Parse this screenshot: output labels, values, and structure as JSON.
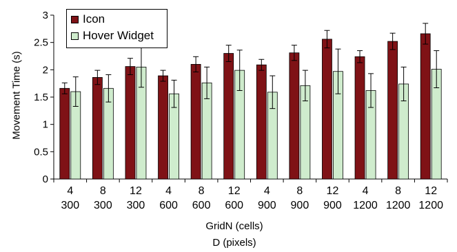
{
  "chart_data": {
    "type": "bar",
    "title": "",
    "ylabel": "Movement Time (s)",
    "xlabel_lines": [
      "GridN (cells)",
      "D (pixels)"
    ],
    "ylim": [
      0,
      3
    ],
    "yticks": [
      "0",
      "0.5",
      "1",
      "1.5",
      "2",
      "2.5",
      "3"
    ],
    "categories": [
      {
        "grid": "4",
        "d": "300"
      },
      {
        "grid": "8",
        "d": "300"
      },
      {
        "grid": "12",
        "d": "300"
      },
      {
        "grid": "4",
        "d": "600"
      },
      {
        "grid": "8",
        "d": "600"
      },
      {
        "grid": "12",
        "d": "600"
      },
      {
        "grid": "4",
        "d": "900"
      },
      {
        "grid": "8",
        "d": "900"
      },
      {
        "grid": "12",
        "d": "900"
      },
      {
        "grid": "4",
        "d": "1200"
      },
      {
        "grid": "8",
        "d": "1200"
      },
      {
        "grid": "12",
        "d": "1200"
      }
    ],
    "series": [
      {
        "name": "Icon",
        "color": "#7f1216",
        "values": [
          1.66,
          1.86,
          2.06,
          1.89,
          2.1,
          2.3,
          2.09,
          2.31,
          2.56,
          2.24,
          2.52,
          2.66
        ],
        "errors": [
          0.1,
          0.13,
          0.15,
          0.1,
          0.14,
          0.15,
          0.1,
          0.14,
          0.16,
          0.11,
          0.15,
          0.19
        ]
      },
      {
        "name": "Hover Widget",
        "color": "#cfeccd",
        "values": [
          1.6,
          1.66,
          2.05,
          1.56,
          1.76,
          1.99,
          1.59,
          1.71,
          1.97,
          1.62,
          1.74,
          2.01
        ],
        "errors": [
          0.27,
          0.25,
          0.37,
          0.25,
          0.29,
          0.37,
          0.3,
          0.28,
          0.41,
          0.31,
          0.31,
          0.34
        ]
      }
    ],
    "grid": false,
    "legend_position": "top-left"
  }
}
